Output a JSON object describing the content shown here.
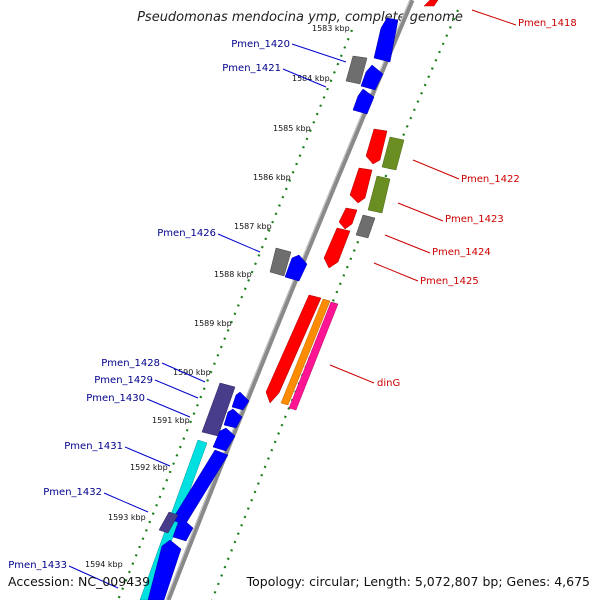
{
  "title": "Pseudomonas mendocina ymp, complete genome",
  "accession": "Accession: NC_009439",
  "topology": "Topology: circular; Length: 5,072,807 bp; Genes: 4,675",
  "colors": {
    "backbone": "#8a8a8a",
    "ticks": "#1a7f1a",
    "forward_label": "#00008b",
    "reverse_label": "#cc0000",
    "red": "#ff0000",
    "blue": "#0000ff",
    "gray": "#6e6e6e",
    "olive": "#6b8e23",
    "purple": "#483d8b",
    "cyan": "#00e0e0",
    "orange": "#ff8c00",
    "pink": "#ff1493"
  },
  "kbp_ticks": [
    {
      "label": "1583 kbp"
    },
    {
      "label": "1584 kbp"
    },
    {
      "label": "1585 kbp"
    },
    {
      "label": "1586 kbp"
    },
    {
      "label": "1587 kbp"
    },
    {
      "label": "1588 kbp"
    },
    {
      "label": "1589 kbp"
    },
    {
      "label": "1590 kbp"
    },
    {
      "label": "1591 kbp"
    },
    {
      "label": "1592 kbp"
    },
    {
      "label": "1593 kbp"
    },
    {
      "label": "1594 kbp"
    }
  ],
  "forward_labels": [
    "Pmen_1420",
    "Pmen_1421",
    "Pmen_1426",
    "Pmen_1428",
    "Pmen_1429",
    "Pmen_1430",
    "Pmen_1431",
    "Pmen_1432",
    "Pmen_1433"
  ],
  "reverse_labels": [
    "Pmen_1418",
    "Pmen_1422",
    "Pmen_1423",
    "Pmen_1424",
    "Pmen_1425",
    "dinG"
  ]
}
